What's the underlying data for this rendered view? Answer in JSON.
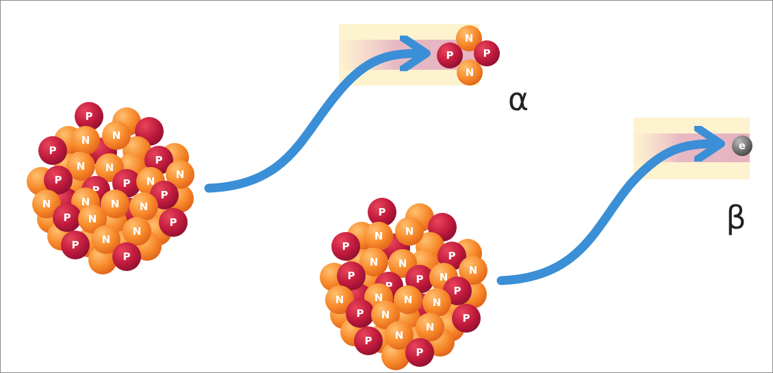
{
  "nuclei": [
    {
      "particles": [
        "P",
        "N",
        "N",
        "P",
        "N",
        "N",
        "P",
        "N",
        "P",
        "P",
        "P",
        "N",
        "P",
        "N",
        "N",
        "N",
        "N",
        "P",
        "N",
        "N",
        "P",
        "P",
        "N",
        "P"
      ]
    },
    {
      "particles": [
        "P",
        "N",
        "N",
        "P",
        "N",
        "N",
        "P",
        "N",
        "P",
        "P",
        "P",
        "N",
        "P",
        "N",
        "N",
        "N",
        "N",
        "P",
        "N",
        "N",
        "P",
        "P",
        "N",
        "P"
      ]
    }
  ],
  "alpha": {
    "particles": [
      "N",
      "P",
      "P",
      "N"
    ],
    "symbol": "α"
  },
  "beta": {
    "particle": "e",
    "symbol": "β"
  }
}
